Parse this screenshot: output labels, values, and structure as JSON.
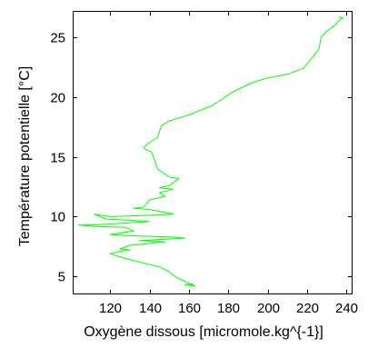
{
  "chart_data": {
    "type": "line",
    "title": "",
    "xlabel": "Oxygène dissous [micromole.kg^{-1}]",
    "ylabel": "Température potentielle [°C]",
    "xlim": [
      101,
      243
    ],
    "ylim": [
      3.5,
      27.2
    ],
    "xticks": [
      120,
      140,
      160,
      180,
      200,
      220,
      240
    ],
    "yticks": [
      5,
      10,
      15,
      20,
      25
    ],
    "grid": false,
    "legend": "none",
    "series": [
      {
        "color": "#00ff00",
        "points": [
          [
            236,
            26.7
          ],
          [
            238,
            26.6
          ],
          [
            236,
            26.4
          ],
          [
            234,
            26.0
          ],
          [
            230,
            25.5
          ],
          [
            227,
            25.0
          ],
          [
            226,
            24.0
          ],
          [
            222,
            23.2
          ],
          [
            218,
            22.4
          ],
          [
            210,
            21.9
          ],
          [
            200,
            21.6
          ],
          [
            192,
            21.2
          ],
          [
            182,
            20.4
          ],
          [
            172,
            19.3
          ],
          [
            160,
            18.5
          ],
          [
            150,
            18.0
          ],
          [
            146,
            17.6
          ],
          [
            144,
            16.6
          ],
          [
            140,
            16.2
          ],
          [
            137,
            15.8
          ],
          [
            138,
            15.6
          ],
          [
            141,
            15.4
          ],
          [
            142,
            15.0
          ],
          [
            144,
            14.0
          ],
          [
            150,
            13.3
          ],
          [
            155,
            13.2
          ],
          [
            150,
            12.6
          ],
          [
            145,
            12.4
          ],
          [
            152,
            12.3
          ],
          [
            145,
            12.0
          ],
          [
            148,
            11.7
          ],
          [
            140,
            11.4
          ],
          [
            137,
            10.8
          ],
          [
            132,
            10.7
          ],
          [
            140,
            10.6
          ],
          [
            152,
            10.2
          ],
          [
            138,
            10.1
          ],
          [
            120,
            10.0
          ],
          [
            112,
            10.2
          ],
          [
            118,
            9.8
          ],
          [
            130,
            9.7
          ],
          [
            140,
            9.6
          ],
          [
            122,
            9.4
          ],
          [
            110,
            9.3
          ],
          [
            104,
            9.3
          ],
          [
            110,
            9.2
          ],
          [
            128,
            9.1
          ],
          [
            132,
            8.8
          ],
          [
            120,
            8.5
          ],
          [
            130,
            8.4
          ],
          [
            150,
            8.3
          ],
          [
            158,
            8.2
          ],
          [
            135,
            8.0
          ],
          [
            148,
            7.9
          ],
          [
            130,
            7.6
          ],
          [
            125,
            7.3
          ],
          [
            130,
            7.2
          ],
          [
            125,
            7.1
          ],
          [
            120,
            6.9
          ],
          [
            128,
            6.5
          ],
          [
            135,
            6.2
          ],
          [
            145,
            5.8
          ],
          [
            150,
            5.4
          ],
          [
            152,
            5.1
          ],
          [
            155,
            4.8
          ],
          [
            158,
            4.6
          ],
          [
            160,
            4.4
          ],
          [
            163,
            4.2
          ],
          [
            158,
            4.3
          ],
          [
            162,
            4.4
          ]
        ]
      }
    ]
  }
}
